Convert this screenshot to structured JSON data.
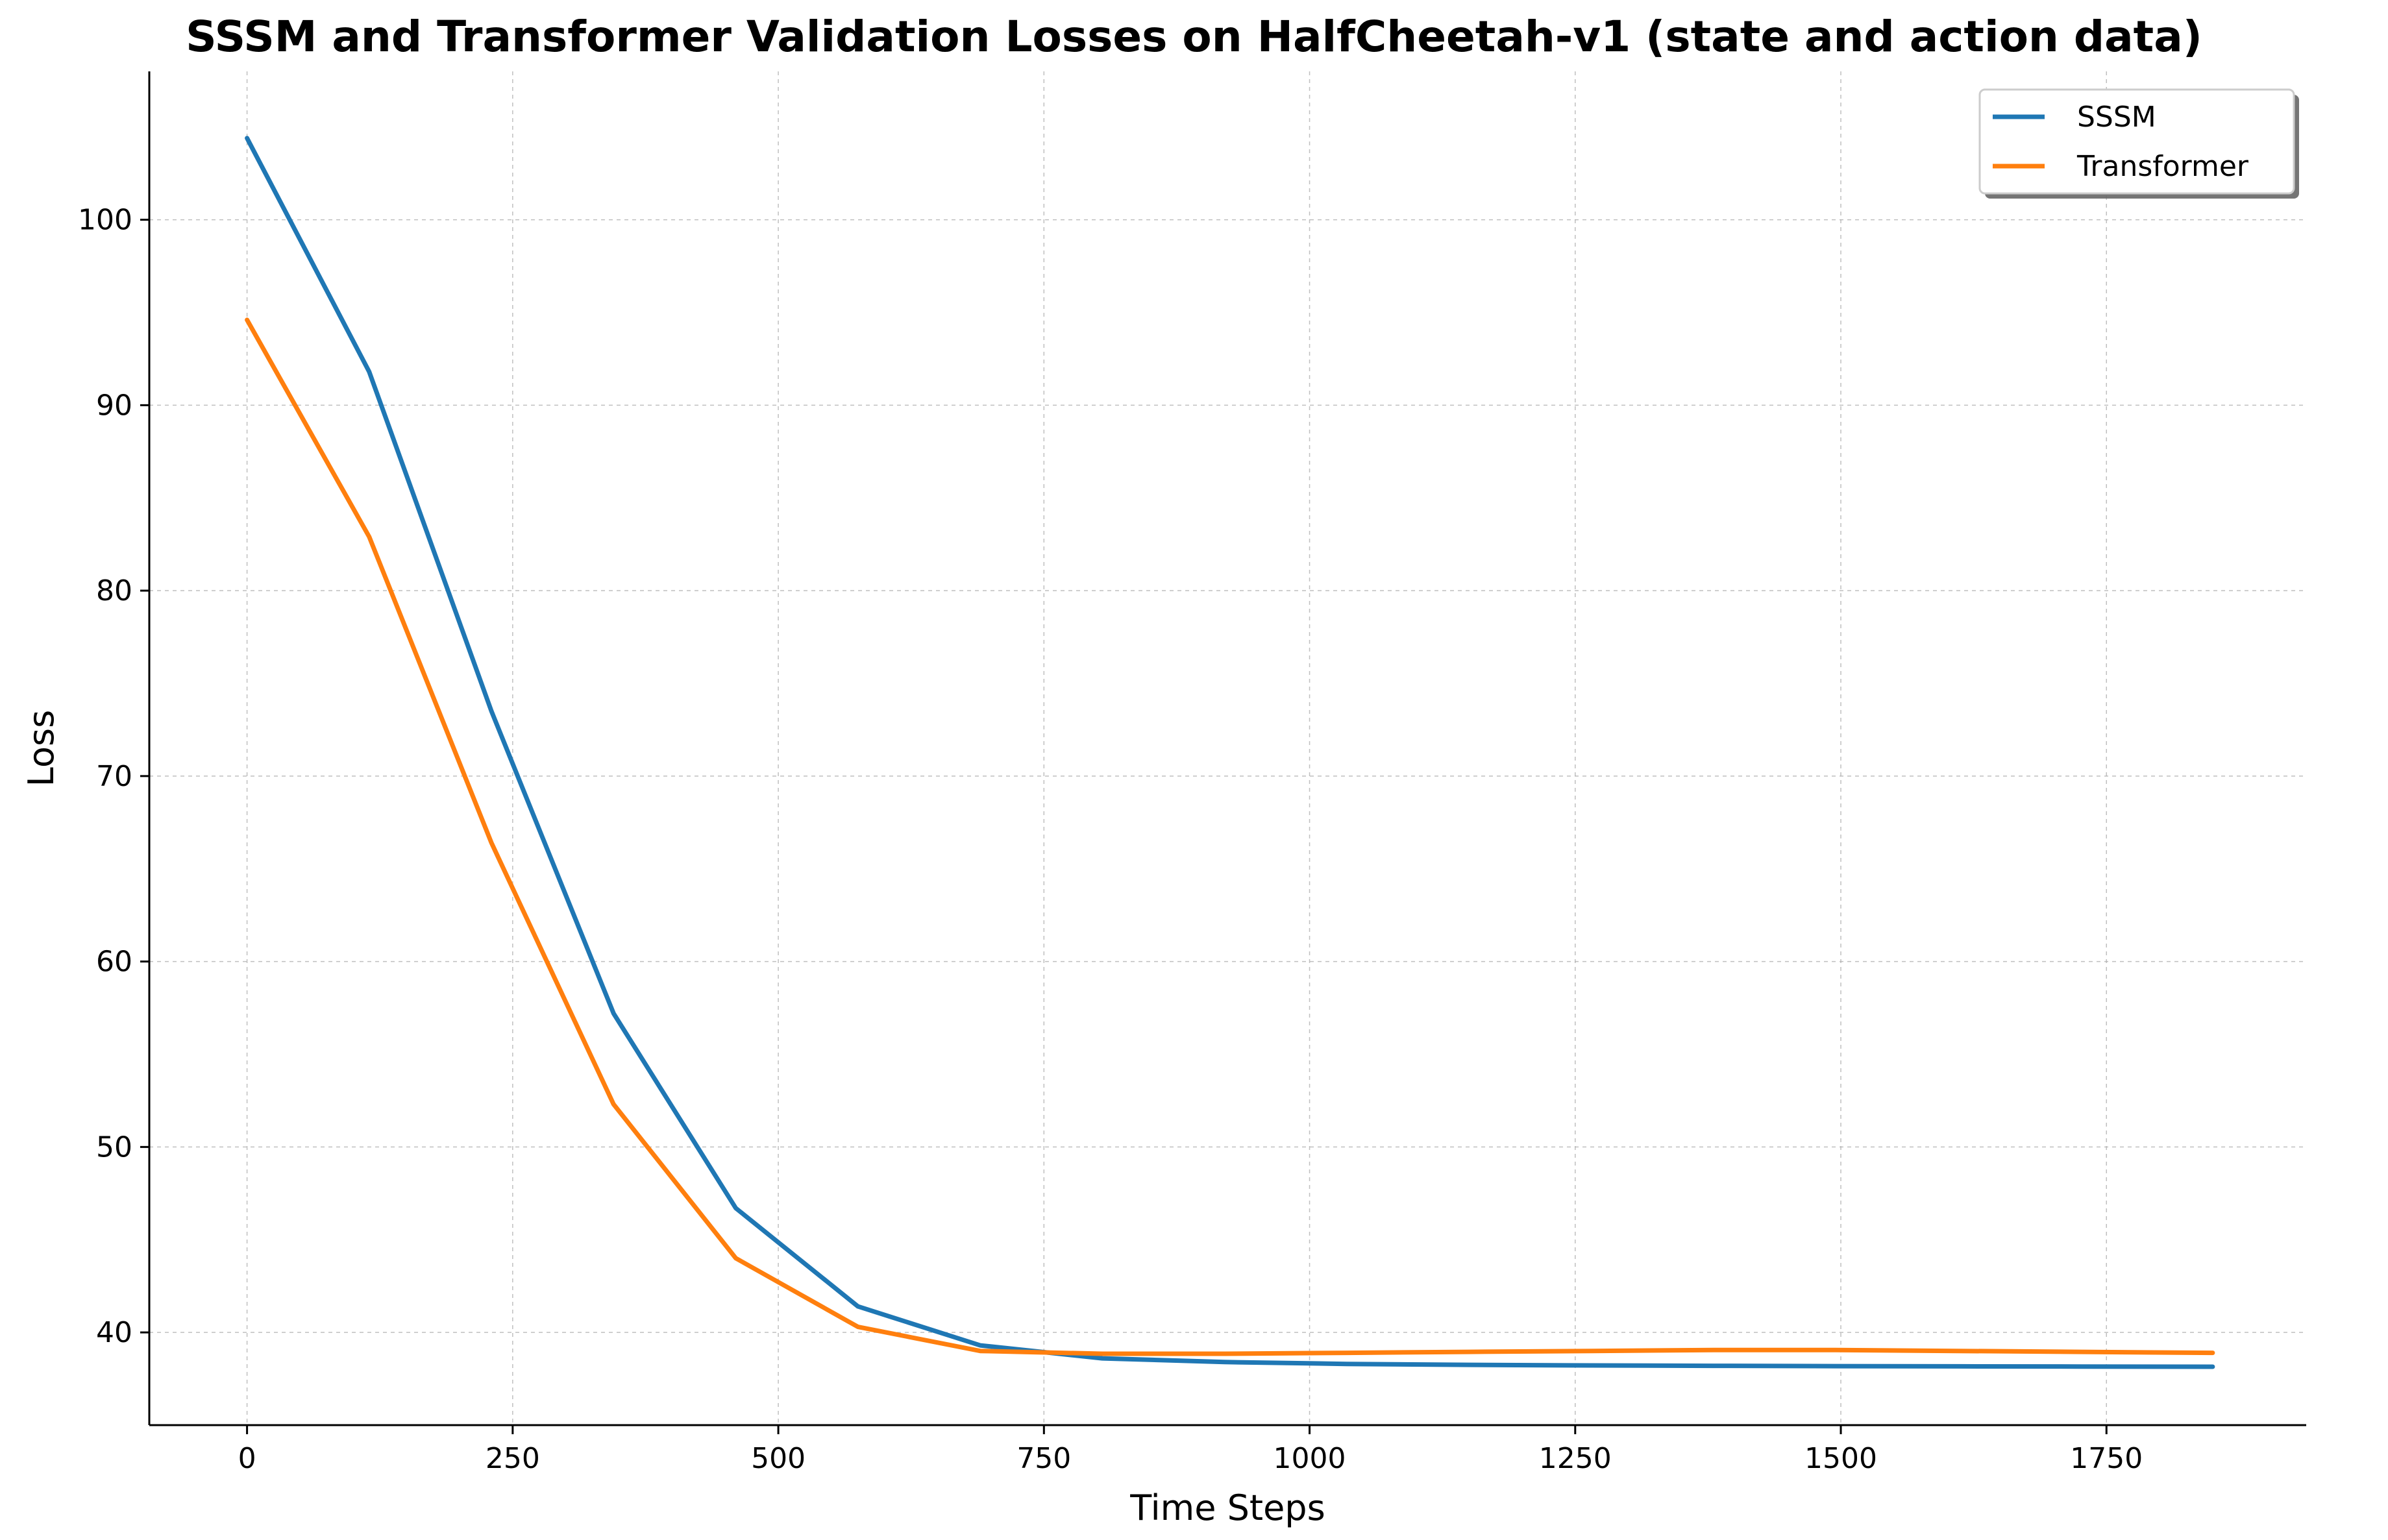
{
  "chart_data": {
    "type": "line",
    "title": "SSSM and Transformer Validation Losses on HalfCheetah-v1 (state and action data)",
    "xlabel": "Time Steps",
    "ylabel": "Loss",
    "xlim": [
      -92,
      1938
    ],
    "ylim": [
      35,
      108
    ],
    "x_ticks": [
      0,
      250,
      500,
      750,
      1000,
      1250,
      1500,
      1750
    ],
    "x_tick_labels": [
      "0",
      "250",
      "500",
      "750",
      "1000",
      "1250",
      "1500",
      "1750"
    ],
    "y_ticks": [
      40,
      50,
      60,
      70,
      80,
      90,
      100
    ],
    "y_tick_labels": [
      "40",
      "50",
      "60",
      "70",
      "80",
      "90",
      "100"
    ],
    "grid": true,
    "legend_position": "top-right",
    "x": [
      0,
      115,
      230,
      345,
      460,
      575,
      690,
      805,
      920,
      1035,
      1150,
      1265,
      1380,
      1495,
      1610,
      1725,
      1850
    ],
    "series": [
      {
        "name": "SSSM",
        "color": "#1f77b4",
        "values": [
          104.4,
          91.8,
          73.5,
          57.2,
          46.7,
          41.4,
          39.3,
          38.6,
          38.4,
          38.3,
          38.25,
          38.22,
          38.2,
          38.18,
          38.17,
          38.16,
          38.15
        ]
      },
      {
        "name": "Transformer",
        "color": "#ff7f0e",
        "values": [
          94.6,
          82.9,
          66.4,
          52.3,
          44.0,
          40.3,
          39.0,
          38.85,
          38.85,
          38.9,
          38.95,
          39.0,
          39.05,
          39.05,
          39.0,
          38.95,
          38.9
        ]
      }
    ]
  }
}
